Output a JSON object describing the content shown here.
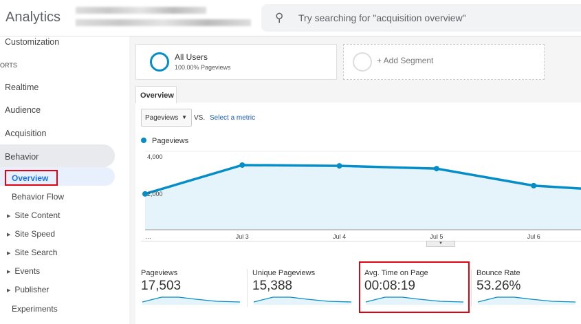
{
  "header": {
    "brand": "Analytics",
    "search_placeholder": "Try searching for \"acquisition overview\"",
    "search_icon": "search-icon"
  },
  "sidebar": {
    "customization": "Customization",
    "reports_heading": "ORTS",
    "items": [
      {
        "label": "Realtime"
      },
      {
        "label": "Audience"
      },
      {
        "label": "Acquisition"
      },
      {
        "label": "Behavior"
      }
    ],
    "behavior_sub": [
      {
        "label": "Overview",
        "selected": true
      },
      {
        "label": "Behavior Flow"
      },
      {
        "label": "Site Content",
        "expandable": true
      },
      {
        "label": "Site Speed",
        "expandable": true
      },
      {
        "label": "Site Search",
        "expandable": true
      },
      {
        "label": "Events",
        "expandable": true
      },
      {
        "label": "Publisher",
        "expandable": true
      },
      {
        "label": "Experiments"
      }
    ]
  },
  "segments": {
    "all_users": "All Users",
    "all_users_sub": "100.00% Pageviews",
    "add_segment": "+ Add Segment"
  },
  "tabs": {
    "overview": "Overview"
  },
  "controls": {
    "metric": "Pageviews",
    "vs": "VS.",
    "select_metric": "Select a metric"
  },
  "chart_data": {
    "type": "area",
    "legend": "Pageviews",
    "color": "#058dc7",
    "x": [
      "…",
      "Jul 3",
      "Jul 4",
      "Jul 5",
      "Jul 6",
      ""
    ],
    "values": [
      1830,
      3300,
      3260,
      3120,
      2250,
      2100
    ],
    "yticks": [
      "4,000",
      "2,000"
    ],
    "ylim": [
      0,
      4000
    ]
  },
  "metrics": [
    {
      "label": "Pageviews",
      "value": "17,503"
    },
    {
      "label": "Unique Pageviews",
      "value": "15,388"
    },
    {
      "label": "Avg. Time on Page",
      "value": "00:08:19"
    },
    {
      "label": "Bounce Rate",
      "value": "53.26%"
    }
  ]
}
